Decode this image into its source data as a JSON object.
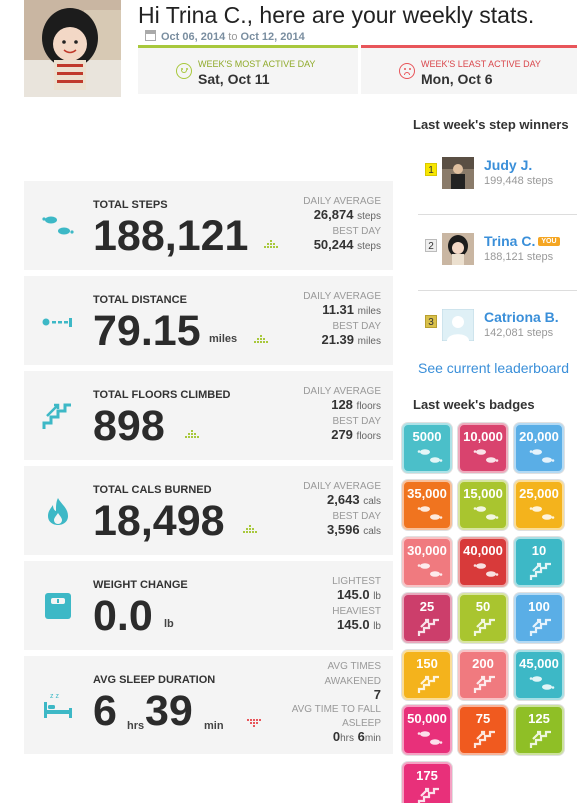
{
  "header": {
    "title": "Hi Trina C., here are your weekly stats.",
    "date_start": "Oct 06, 2014",
    "date_to": "to",
    "date_end": "Oct 12, 2014",
    "most_active_label": "WEEK'S MOST ACTIVE DAY",
    "most_active_value": "Sat, Oct 11",
    "least_active_label": "WEEK'S LEAST ACTIVE DAY",
    "least_active_value": "Mon, Oct 6"
  },
  "stats": {
    "steps": {
      "title": "TOTAL STEPS",
      "value": "188,121",
      "avg_label": "DAILY AVERAGE",
      "avg": "26,874",
      "avg_unit": "steps",
      "best_label": "BEST DAY",
      "best": "50,244",
      "best_unit": "steps"
    },
    "distance": {
      "title": "TOTAL DISTANCE",
      "value": "79.15",
      "unit": "miles",
      "avg_label": "DAILY AVERAGE",
      "avg": "11.31",
      "avg_unit": "miles",
      "best_label": "BEST DAY",
      "best": "21.39",
      "best_unit": "miles"
    },
    "floors": {
      "title": "TOTAL FLOORS CLIMBED",
      "value": "898",
      "avg_label": "DAILY AVERAGE",
      "avg": "128",
      "avg_unit": "floors",
      "best_label": "BEST DAY",
      "best": "279",
      "best_unit": "floors"
    },
    "cals": {
      "title": "TOTAL CALS BURNED",
      "value": "18,498",
      "avg_label": "DAILY AVERAGE",
      "avg": "2,643",
      "avg_unit": "cals",
      "best_label": "BEST DAY",
      "best": "3,596",
      "best_unit": "cals"
    },
    "weight": {
      "title": "WEIGHT CHANGE",
      "value": "0.0",
      "unit": "lb",
      "lightest_label": "LIGHTEST",
      "lightest": "145.0",
      "lightest_unit": "lb",
      "heaviest_label": "HEAVIEST",
      "heaviest": "145.0",
      "heaviest_unit": "lb"
    },
    "sleep": {
      "title": "AVG SLEEP DURATION",
      "hours": "6",
      "hours_unit": "hrs",
      "minutes": "39",
      "minutes_unit": "min",
      "awake_label_1": "AVG TIMES",
      "awake_label_2": "AWAKENED",
      "awake": "7",
      "fall_label_1": "AVG TIME TO FALL",
      "fall_label_2": "ASLEEP",
      "fall_hours": "0",
      "fall_hours_unit": "hrs",
      "fall_minutes": "6",
      "fall_minutes_unit": "min"
    }
  },
  "sidebar": {
    "winners_heading": "Last week's step winners",
    "winners": [
      {
        "rank": "1",
        "name": "Judy J.",
        "steps": "199,448 steps"
      },
      {
        "rank": "2",
        "name": "Trina C.",
        "badge": "YOU",
        "steps": "188,121 steps"
      },
      {
        "rank": "3",
        "name": "Catriona B.",
        "steps": "142,081 steps"
      }
    ],
    "leaderboard_link": "See current leaderboard",
    "badges_heading": "Last week's badges",
    "badges": [
      {
        "label": "5000",
        "color": "#4bbfc9",
        "icon": "footprints-icon"
      },
      {
        "label": "10,000",
        "color": "#d9436e",
        "icon": "footprints-icon"
      },
      {
        "label": "20,000",
        "color": "#5aaee6",
        "icon": "footprints-icon"
      },
      {
        "label": "35,000",
        "color": "#f0741f",
        "icon": "footprints-icon"
      },
      {
        "label": "15,000",
        "color": "#a9c52f",
        "icon": "footprints-icon"
      },
      {
        "label": "25,000",
        "color": "#f4b31c",
        "icon": "footprints-icon"
      },
      {
        "label": "30,000",
        "color": "#f07a7f",
        "icon": "footprints-icon"
      },
      {
        "label": "40,000",
        "color": "#d83a3a",
        "icon": "footprints-icon"
      },
      {
        "label": "10",
        "color": "#3db8c6",
        "icon": "stairs-icon"
      },
      {
        "label": "25",
        "color": "#cc3e6b",
        "icon": "stairs-icon"
      },
      {
        "label": "50",
        "color": "#a9c52f",
        "icon": "stairs-icon"
      },
      {
        "label": "100",
        "color": "#5aaee6",
        "icon": "stairs-icon"
      },
      {
        "label": "150",
        "color": "#f4b31c",
        "icon": "stairs-icon"
      },
      {
        "label": "200",
        "color": "#f07a7f",
        "icon": "stairs-icon"
      },
      {
        "label": "45,000",
        "color": "#3db8c6",
        "icon": "footprints-icon"
      },
      {
        "label": "50,000",
        "color": "#e8307a",
        "icon": "footprints-icon"
      },
      {
        "label": "75",
        "color": "#f05a1f",
        "icon": "stairs-icon"
      },
      {
        "label": "125",
        "color": "#8fbf26",
        "icon": "stairs-icon"
      },
      {
        "label": "175",
        "color": "#e8307a",
        "icon": "stairs-icon"
      }
    ]
  }
}
